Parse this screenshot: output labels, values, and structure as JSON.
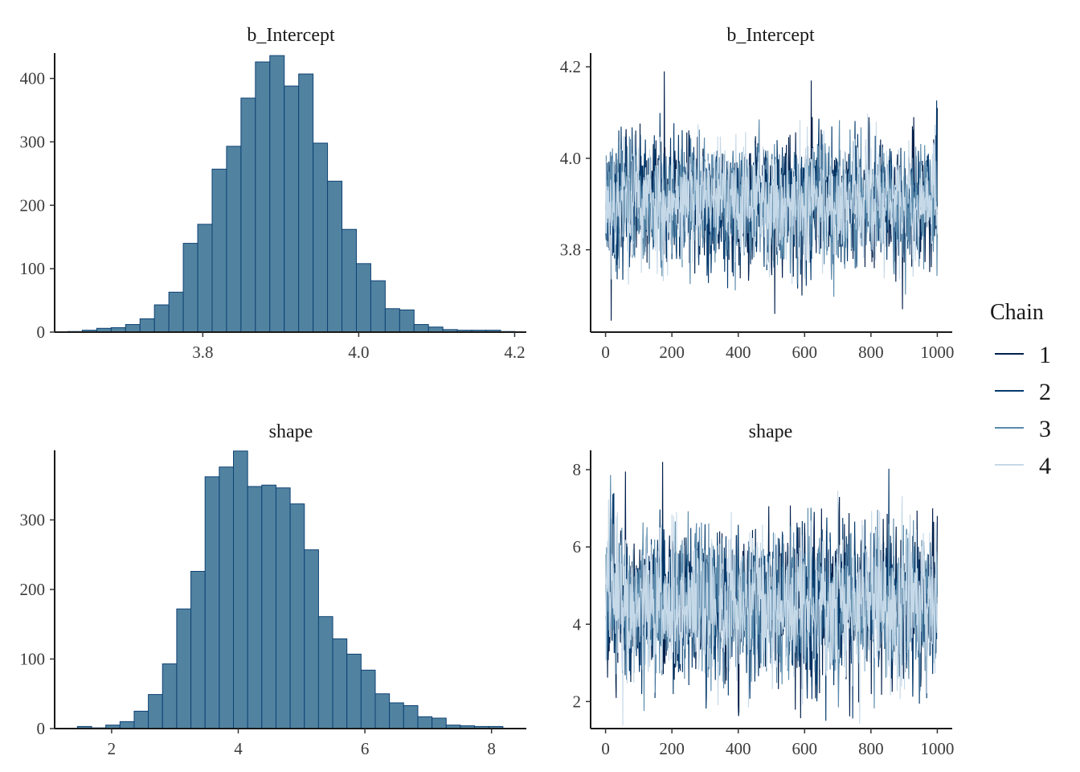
{
  "colors": {
    "hist_fill": "#5183a1",
    "hist_outline": "#0e4173",
    "chains": [
      "#011f4b",
      "#03396c",
      "#5b8aab",
      "#c6d9e8"
    ]
  },
  "legend": {
    "title": "Chain",
    "items": [
      "1",
      "2",
      "3",
      "4"
    ]
  },
  "chart_data": [
    {
      "type": "bar",
      "subtype": "histogram",
      "title": "b_Intercept",
      "bin_start": 3.627,
      "bin_width": 0.0185,
      "counts": [
        1,
        3,
        6,
        7,
        12,
        21,
        43,
        63,
        140,
        170,
        257,
        293,
        369,
        426,
        436,
        388,
        407,
        298,
        238,
        162,
        108,
        81,
        37,
        35,
        12,
        8,
        4,
        3,
        3,
        3,
        1
      ],
      "xlim": [
        3.61,
        4.215
      ],
      "ylim": [
        0,
        440
      ],
      "xticks": [
        "3.8",
        "4.0",
        "4.2"
      ],
      "yticks": [
        "0",
        "100",
        "200",
        "300",
        "400"
      ]
    },
    {
      "type": "line",
      "subtype": "trace",
      "title": "b_Intercept",
      "x_range": [
        1,
        1000
      ],
      "xlim": [
        -45,
        1045
      ],
      "ylim": [
        3.62,
        4.23
      ],
      "center": 3.905,
      "sd": 0.065,
      "extremes": [
        [
          17,
          3.645
        ],
        [
          177,
          4.19
        ],
        [
          620,
          4.17
        ],
        [
          510,
          3.66
        ],
        [
          895,
          3.67
        ],
        [
          1000,
          4.11
        ]
      ],
      "series": [
        {
          "name": "1",
          "seed": 11
        },
        {
          "name": "2",
          "seed": 23
        },
        {
          "name": "3",
          "seed": 37
        },
        {
          "name": "4",
          "seed": 53
        }
      ],
      "xticks": [
        "0",
        "200",
        "400",
        "600",
        "800",
        "1000"
      ],
      "yticks": [
        "3.8",
        "4.0",
        "4.2"
      ]
    },
    {
      "type": "bar",
      "subtype": "histogram",
      "title": "shape",
      "bin_start": 1.46,
      "bin_width": 0.224,
      "counts": [
        3,
        1,
        5,
        10,
        25,
        49,
        93,
        172,
        226,
        362,
        376,
        399,
        348,
        350,
        346,
        323,
        257,
        161,
        129,
        107,
        84,
        50,
        37,
        33,
        17,
        15,
        5,
        4,
        3,
        3
      ],
      "xlim": [
        1.1,
        8.55
      ],
      "ylim": [
        0,
        400
      ],
      "xticks": [
        "2",
        "4",
        "6",
        "8"
      ],
      "yticks": [
        "0",
        "100",
        "200",
        "300"
      ]
    },
    {
      "type": "line",
      "subtype": "trace",
      "title": "shape",
      "x_range": [
        1,
        1000
      ],
      "xlim": [
        -45,
        1045
      ],
      "ylim": [
        1.3,
        8.5
      ],
      "center": 4.5,
      "sd": 0.95,
      "extremes": [
        [
          172,
          1.65
        ],
        [
          172,
          8.2
        ],
        [
          60,
          7.95
        ],
        [
          400,
          1.9
        ],
        [
          1000,
          6.8
        ]
      ],
      "series": [
        {
          "name": "1",
          "seed": 71
        },
        {
          "name": "2",
          "seed": 83
        },
        {
          "name": "3",
          "seed": 97
        },
        {
          "name": "4",
          "seed": 113
        }
      ],
      "xticks": [
        "0",
        "200",
        "400",
        "600",
        "800",
        "1000"
      ],
      "yticks": [
        "2",
        "4",
        "6",
        "8"
      ]
    }
  ]
}
